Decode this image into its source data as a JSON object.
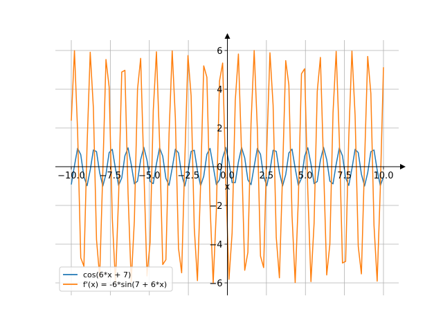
{
  "chart_data": {
    "type": "line",
    "title": "",
    "xlabel": "x",
    "ylabel": "",
    "xlim": [
      -10,
      10
    ],
    "ylim": [
      -6,
      6
    ],
    "xticks": [
      -10.0,
      -7.5,
      -5.0,
      -2.5,
      0.0,
      2.5,
      5.0,
      7.5,
      10.0
    ],
    "xtick_labels": [
      "−10.0",
      "−7.5",
      "−5.0",
      "−2.5",
      "0.0",
      "2.5",
      "5.0",
      "7.5",
      "10.0"
    ],
    "yticks": [
      -6,
      -4,
      -2,
      0,
      2,
      4,
      6
    ],
    "ytick_labels": [
      "−6",
      "−4",
      "−2",
      "0",
      "2",
      "4",
      "6"
    ],
    "grid": true,
    "axes": "centered-at-origin",
    "legend_position": "lower-left",
    "x_samples": {
      "start": -10,
      "stop": 10,
      "count": 100
    },
    "series": [
      {
        "name": "cos(6*x + 7)",
        "function": "cos(6*x + 7)",
        "color": "#1f77b4"
      },
      {
        "name": "f'(x) = -6*sin(7 + 6*x)",
        "function": "-6*sin(7 + 6*x)",
        "color": "#ff7f0e"
      }
    ]
  }
}
